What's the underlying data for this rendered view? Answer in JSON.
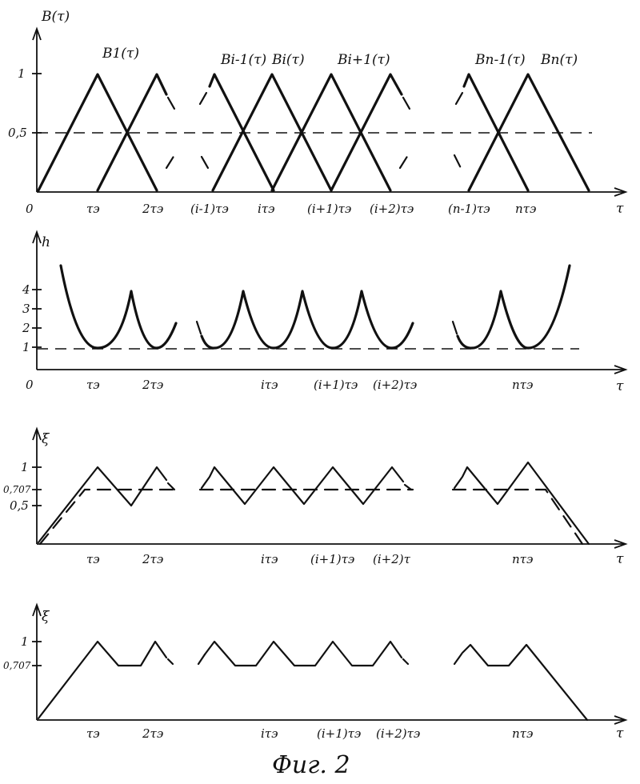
{
  "figure": {
    "caption": "Фиг. 2",
    "panel1": {
      "axis_y": "B(τ)",
      "axis_x": "τ",
      "y_ticks": [
        "1",
        "0,5"
      ],
      "x_ticks": [
        "0",
        "τэ",
        "2τэ",
        "(i-1)τэ",
        "iτэ",
        "(i+1)τэ",
        "(i+2)τэ",
        "(n-1)τэ",
        "nτэ"
      ],
      "curve_labels": [
        "B1(τ)",
        "Bi-1(τ)",
        "Bi(τ)",
        "Bi+1(τ)",
        "Bn-1(τ)",
        "Bn(τ)"
      ]
    },
    "panel2": {
      "axis_y": "h",
      "axis_x": "τ",
      "y_ticks": [
        "4",
        "3",
        "2",
        "1"
      ],
      "x_ticks": [
        "0",
        "τэ",
        "2τэ",
        "iτэ",
        "(i+1)τэ",
        "(i+2)τэ",
        "nτэ"
      ]
    },
    "panel3": {
      "axis_y": "ξ",
      "axis_x": "τ",
      "y_ticks": [
        "1",
        "0,707",
        "0,5"
      ],
      "x_ticks": [
        "τэ",
        "2τэ",
        "iτэ",
        "(i+1)τэ",
        "(i+2)τ",
        "nτэ"
      ]
    },
    "panel4": {
      "axis_y": "ξ",
      "axis_x": "τ",
      "y_ticks": [
        "1",
        "0,707"
      ],
      "x_ticks": [
        "τэ",
        "2τэ",
        "iτэ",
        "(i+1)τэ",
        "(i+2)τэ",
        "nτэ"
      ]
    }
  }
}
